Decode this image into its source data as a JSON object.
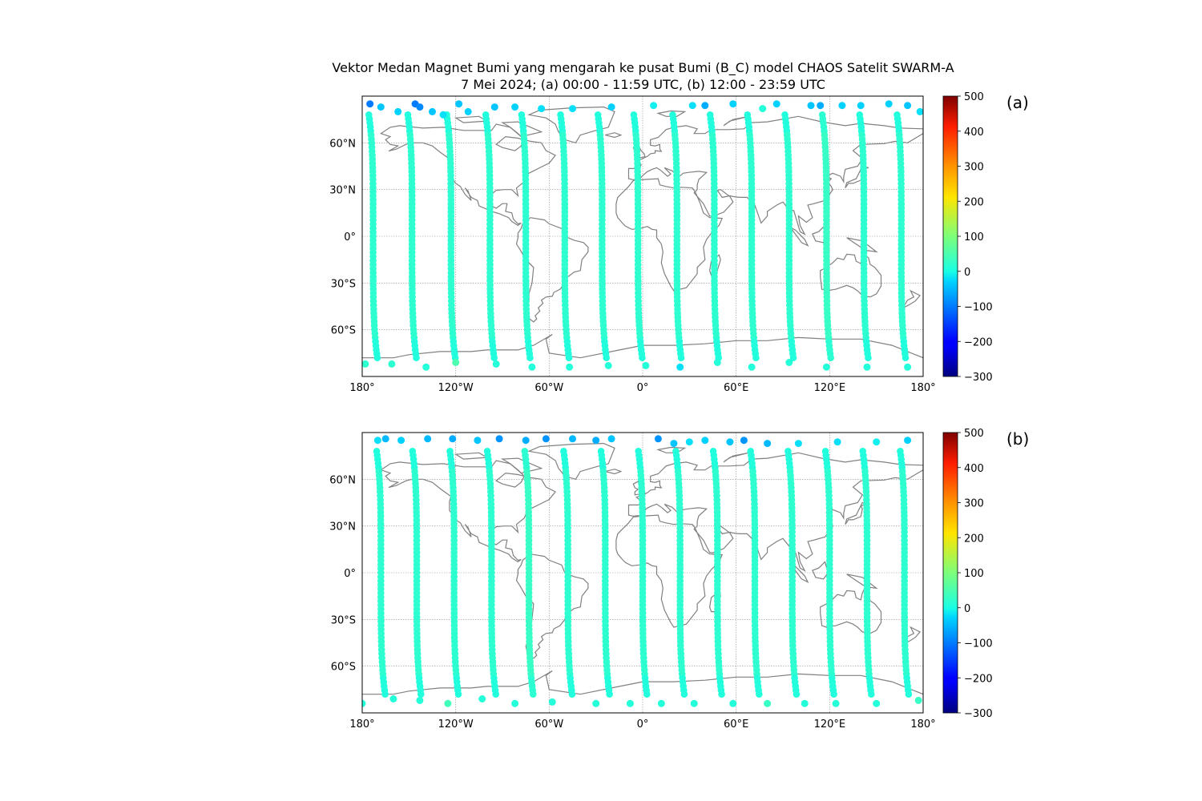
{
  "figure": {
    "title_line1": "Vektor Medan Magnet Bumi yang mengarah ke pusat Bumi (B_C) model CHAOS Satelit SWARM-A",
    "title_line2": "7 Mei 2024; (a) 00:00 - 11:59 UTC, (b) 12:00 - 23:59 UTC"
  },
  "colors": {
    "coastline": "#808080",
    "grid": "#909090",
    "colormap": "jet",
    "track_dominant": "#1af2dc"
  },
  "chart_data": [
    {
      "type": "scatter",
      "panel_label": "(a)",
      "projection": "plate-carree",
      "xlim": [
        -180,
        180
      ],
      "ylim": [
        -90,
        90
      ],
      "x_ticks": [
        -180,
        -120,
        -60,
        0,
        60,
        120,
        180
      ],
      "x_tick_labels": [
        "180°",
        "120°W",
        "60°W",
        "0°",
        "60°E",
        "120°E",
        "180°"
      ],
      "y_ticks": [
        60,
        30,
        0,
        -30,
        -60
      ],
      "y_tick_labels": [
        "60°N",
        "30°N",
        "0°",
        "30°S",
        "60°S"
      ],
      "grid": true,
      "colorbar": {
        "min": -300,
        "max": 500,
        "ticks": [
          500,
          400,
          300,
          200,
          100,
          0,
          -100,
          -200,
          -300
        ],
        "tick_labels": [
          "500",
          "400",
          "300",
          "200",
          "100",
          "0",
          "−100",
          "−200",
          "−300"
        ]
      },
      "tracks": [
        {
          "lon": -173,
          "typical_value": 20
        },
        {
          "lon": -148,
          "typical_value": 20
        },
        {
          "lon": -123,
          "typical_value": 20
        },
        {
          "lon": -98,
          "typical_value": 20
        },
        {
          "lon": -75,
          "typical_value": 20
        },
        {
          "lon": -50,
          "typical_value": 20
        },
        {
          "lon": -26,
          "typical_value": 20
        },
        {
          "lon": -3,
          "typical_value": 20
        },
        {
          "lon": 22,
          "typical_value": 20
        },
        {
          "lon": 46,
          "typical_value": 20
        },
        {
          "lon": 70,
          "typical_value": 20
        },
        {
          "lon": 94,
          "typical_value": 20
        },
        {
          "lon": 118,
          "typical_value": 30
        },
        {
          "lon": 142,
          "typical_value": 20
        },
        {
          "lon": 166,
          "typical_value": 20
        }
      ],
      "north_cap_points": [
        {
          "lon": -175,
          "lat": 85,
          "value": -100
        },
        {
          "lon": -168,
          "lat": 83,
          "value": -40
        },
        {
          "lon": -157,
          "lat": 80,
          "value": -30
        },
        {
          "lon": -146,
          "lat": 85,
          "value": -100
        },
        {
          "lon": -143,
          "lat": 83,
          "value": -90
        },
        {
          "lon": -135,
          "lat": 80,
          "value": -40
        },
        {
          "lon": -128,
          "lat": 78,
          "value": -20
        },
        {
          "lon": -118,
          "lat": 85,
          "value": -40
        },
        {
          "lon": -112,
          "lat": 80,
          "value": -30
        },
        {
          "lon": -95,
          "lat": 83,
          "value": -40
        },
        {
          "lon": -82,
          "lat": 83,
          "value": -30
        },
        {
          "lon": -65,
          "lat": 82,
          "value": -20
        },
        {
          "lon": -45,
          "lat": 82,
          "value": -20
        },
        {
          "lon": -20,
          "lat": 83,
          "value": -30
        },
        {
          "lon": 7,
          "lat": 84,
          "value": -10
        },
        {
          "lon": 32,
          "lat": 84,
          "value": -20
        },
        {
          "lon": 40,
          "lat": 84,
          "value": -60
        },
        {
          "lon": 58,
          "lat": 85,
          "value": -30
        },
        {
          "lon": 77,
          "lat": 82,
          "value": 10
        },
        {
          "lon": 86,
          "lat": 85,
          "value": -30
        },
        {
          "lon": 108,
          "lat": 84,
          "value": -40
        },
        {
          "lon": 114,
          "lat": 84,
          "value": -60
        },
        {
          "lon": 128,
          "lat": 84,
          "value": -30
        },
        {
          "lon": 140,
          "lat": 84,
          "value": -30
        },
        {
          "lon": 158,
          "lat": 85,
          "value": -30
        },
        {
          "lon": 170,
          "lat": 84,
          "value": -40
        },
        {
          "lon": 178,
          "lat": 80,
          "value": -20
        }
      ],
      "south_cap_points": [
        {
          "lon": -178,
          "lat": -82,
          "value": 20
        },
        {
          "lon": -161,
          "lat": -82,
          "value": 20
        },
        {
          "lon": -139,
          "lat": -84,
          "value": 10
        },
        {
          "lon": -120,
          "lat": -81,
          "value": 50
        },
        {
          "lon": -94,
          "lat": -82,
          "value": 10
        },
        {
          "lon": -71,
          "lat": -84,
          "value": 10
        },
        {
          "lon": -47,
          "lat": -84,
          "value": 10
        },
        {
          "lon": -22,
          "lat": -83,
          "value": 10
        },
        {
          "lon": 2,
          "lat": -83,
          "value": 10
        },
        {
          "lon": 24,
          "lat": -84,
          "value": -20
        },
        {
          "lon": 48,
          "lat": -81,
          "value": 10
        },
        {
          "lon": 70,
          "lat": -84,
          "value": 10
        },
        {
          "lon": 94,
          "lat": -81,
          "value": 10
        },
        {
          "lon": 118,
          "lat": -84,
          "value": 10
        },
        {
          "lon": 144,
          "lat": -84,
          "value": 10
        },
        {
          "lon": 170,
          "lat": -84,
          "value": 10
        }
      ]
    },
    {
      "type": "scatter",
      "panel_label": "(b)",
      "projection": "plate-carree",
      "xlim": [
        -180,
        180
      ],
      "ylim": [
        -90,
        90
      ],
      "x_ticks": [
        -180,
        -120,
        -60,
        0,
        60,
        120,
        180
      ],
      "x_tick_labels": [
        "180°",
        "120°W",
        "60°W",
        "0°",
        "60°E",
        "120°E",
        "180°"
      ],
      "y_ticks": [
        60,
        30,
        0,
        -30,
        -60
      ],
      "y_tick_labels": [
        "60°N",
        "30°N",
        "0°",
        "30°S",
        "60°S"
      ],
      "grid": true,
      "colorbar": {
        "min": -300,
        "max": 500,
        "ticks": [
          500,
          400,
          300,
          200,
          100,
          0,
          -100,
          -200,
          -300
        ],
        "tick_labels": [
          "500",
          "400",
          "300",
          "200",
          "100",
          "0",
          "−100",
          "−200",
          "−300"
        ]
      },
      "tracks": [
        {
          "lon": -168,
          "typical_value": 20
        },
        {
          "lon": -145,
          "typical_value": 20
        },
        {
          "lon": -121,
          "typical_value": 20
        },
        {
          "lon": -97,
          "typical_value": 20
        },
        {
          "lon": -73,
          "typical_value": 30
        },
        {
          "lon": -48,
          "typical_value": 20
        },
        {
          "lon": -24,
          "typical_value": 20
        },
        {
          "lon": 0,
          "typical_value": 20
        },
        {
          "lon": 24,
          "typical_value": 20
        },
        {
          "lon": 48,
          "typical_value": 20
        },
        {
          "lon": 72,
          "typical_value": 20
        },
        {
          "lon": 96,
          "typical_value": 20
        },
        {
          "lon": 120,
          "typical_value": 20
        },
        {
          "lon": 144,
          "typical_value": 20
        },
        {
          "lon": 168,
          "typical_value": 20
        }
      ],
      "north_cap_points": [
        {
          "lon": -170,
          "lat": 85,
          "value": -20
        },
        {
          "lon": -165,
          "lat": 86,
          "value": -50
        },
        {
          "lon": -155,
          "lat": 85,
          "value": -30
        },
        {
          "lon": -138,
          "lat": 86,
          "value": -50
        },
        {
          "lon": -122,
          "lat": 86,
          "value": -60
        },
        {
          "lon": -106,
          "lat": 85,
          "value": -40
        },
        {
          "lon": -92,
          "lat": 86,
          "value": -80
        },
        {
          "lon": -75,
          "lat": 85,
          "value": -60
        },
        {
          "lon": -62,
          "lat": 86,
          "value": -80
        },
        {
          "lon": -45,
          "lat": 86,
          "value": -50
        },
        {
          "lon": -30,
          "lat": 85,
          "value": -60
        },
        {
          "lon": -20,
          "lat": 86,
          "value": -40
        },
        {
          "lon": 10,
          "lat": 86,
          "value": -80
        },
        {
          "lon": 20,
          "lat": 83,
          "value": -40
        },
        {
          "lon": 30,
          "lat": 84,
          "value": -20
        },
        {
          "lon": 40,
          "lat": 85,
          "value": -30
        },
        {
          "lon": 56,
          "lat": 84,
          "value": -40
        },
        {
          "lon": 65,
          "lat": 85,
          "value": -80
        },
        {
          "lon": 80,
          "lat": 83,
          "value": -50
        },
        {
          "lon": 100,
          "lat": 83,
          "value": -20
        },
        {
          "lon": 125,
          "lat": 84,
          "value": -20
        },
        {
          "lon": 150,
          "lat": 84,
          "value": -10
        },
        {
          "lon": 170,
          "lat": 85,
          "value": -30
        }
      ],
      "south_cap_points": [
        {
          "lon": -180,
          "lat": -84,
          "value": 10
        },
        {
          "lon": -160,
          "lat": -81,
          "value": 10
        },
        {
          "lon": -143,
          "lat": -82,
          "value": 10
        },
        {
          "lon": -125,
          "lat": -84,
          "value": 40
        },
        {
          "lon": -103,
          "lat": -81,
          "value": 10
        },
        {
          "lon": -82,
          "lat": -84,
          "value": 10
        },
        {
          "lon": -58,
          "lat": -83,
          "value": 10
        },
        {
          "lon": -30,
          "lat": -84,
          "value": 10
        },
        {
          "lon": -8,
          "lat": -84,
          "value": 10
        },
        {
          "lon": 12,
          "lat": -84,
          "value": 10
        },
        {
          "lon": 33,
          "lat": -84,
          "value": 10
        },
        {
          "lon": 58,
          "lat": -84,
          "value": 10
        },
        {
          "lon": 80,
          "lat": -84,
          "value": 30
        },
        {
          "lon": 104,
          "lat": -84,
          "value": 10
        },
        {
          "lon": 124,
          "lat": -84,
          "value": 10
        },
        {
          "lon": 150,
          "lat": -84,
          "value": 10
        },
        {
          "lon": 177,
          "lat": -82,
          "value": 30
        }
      ]
    }
  ]
}
